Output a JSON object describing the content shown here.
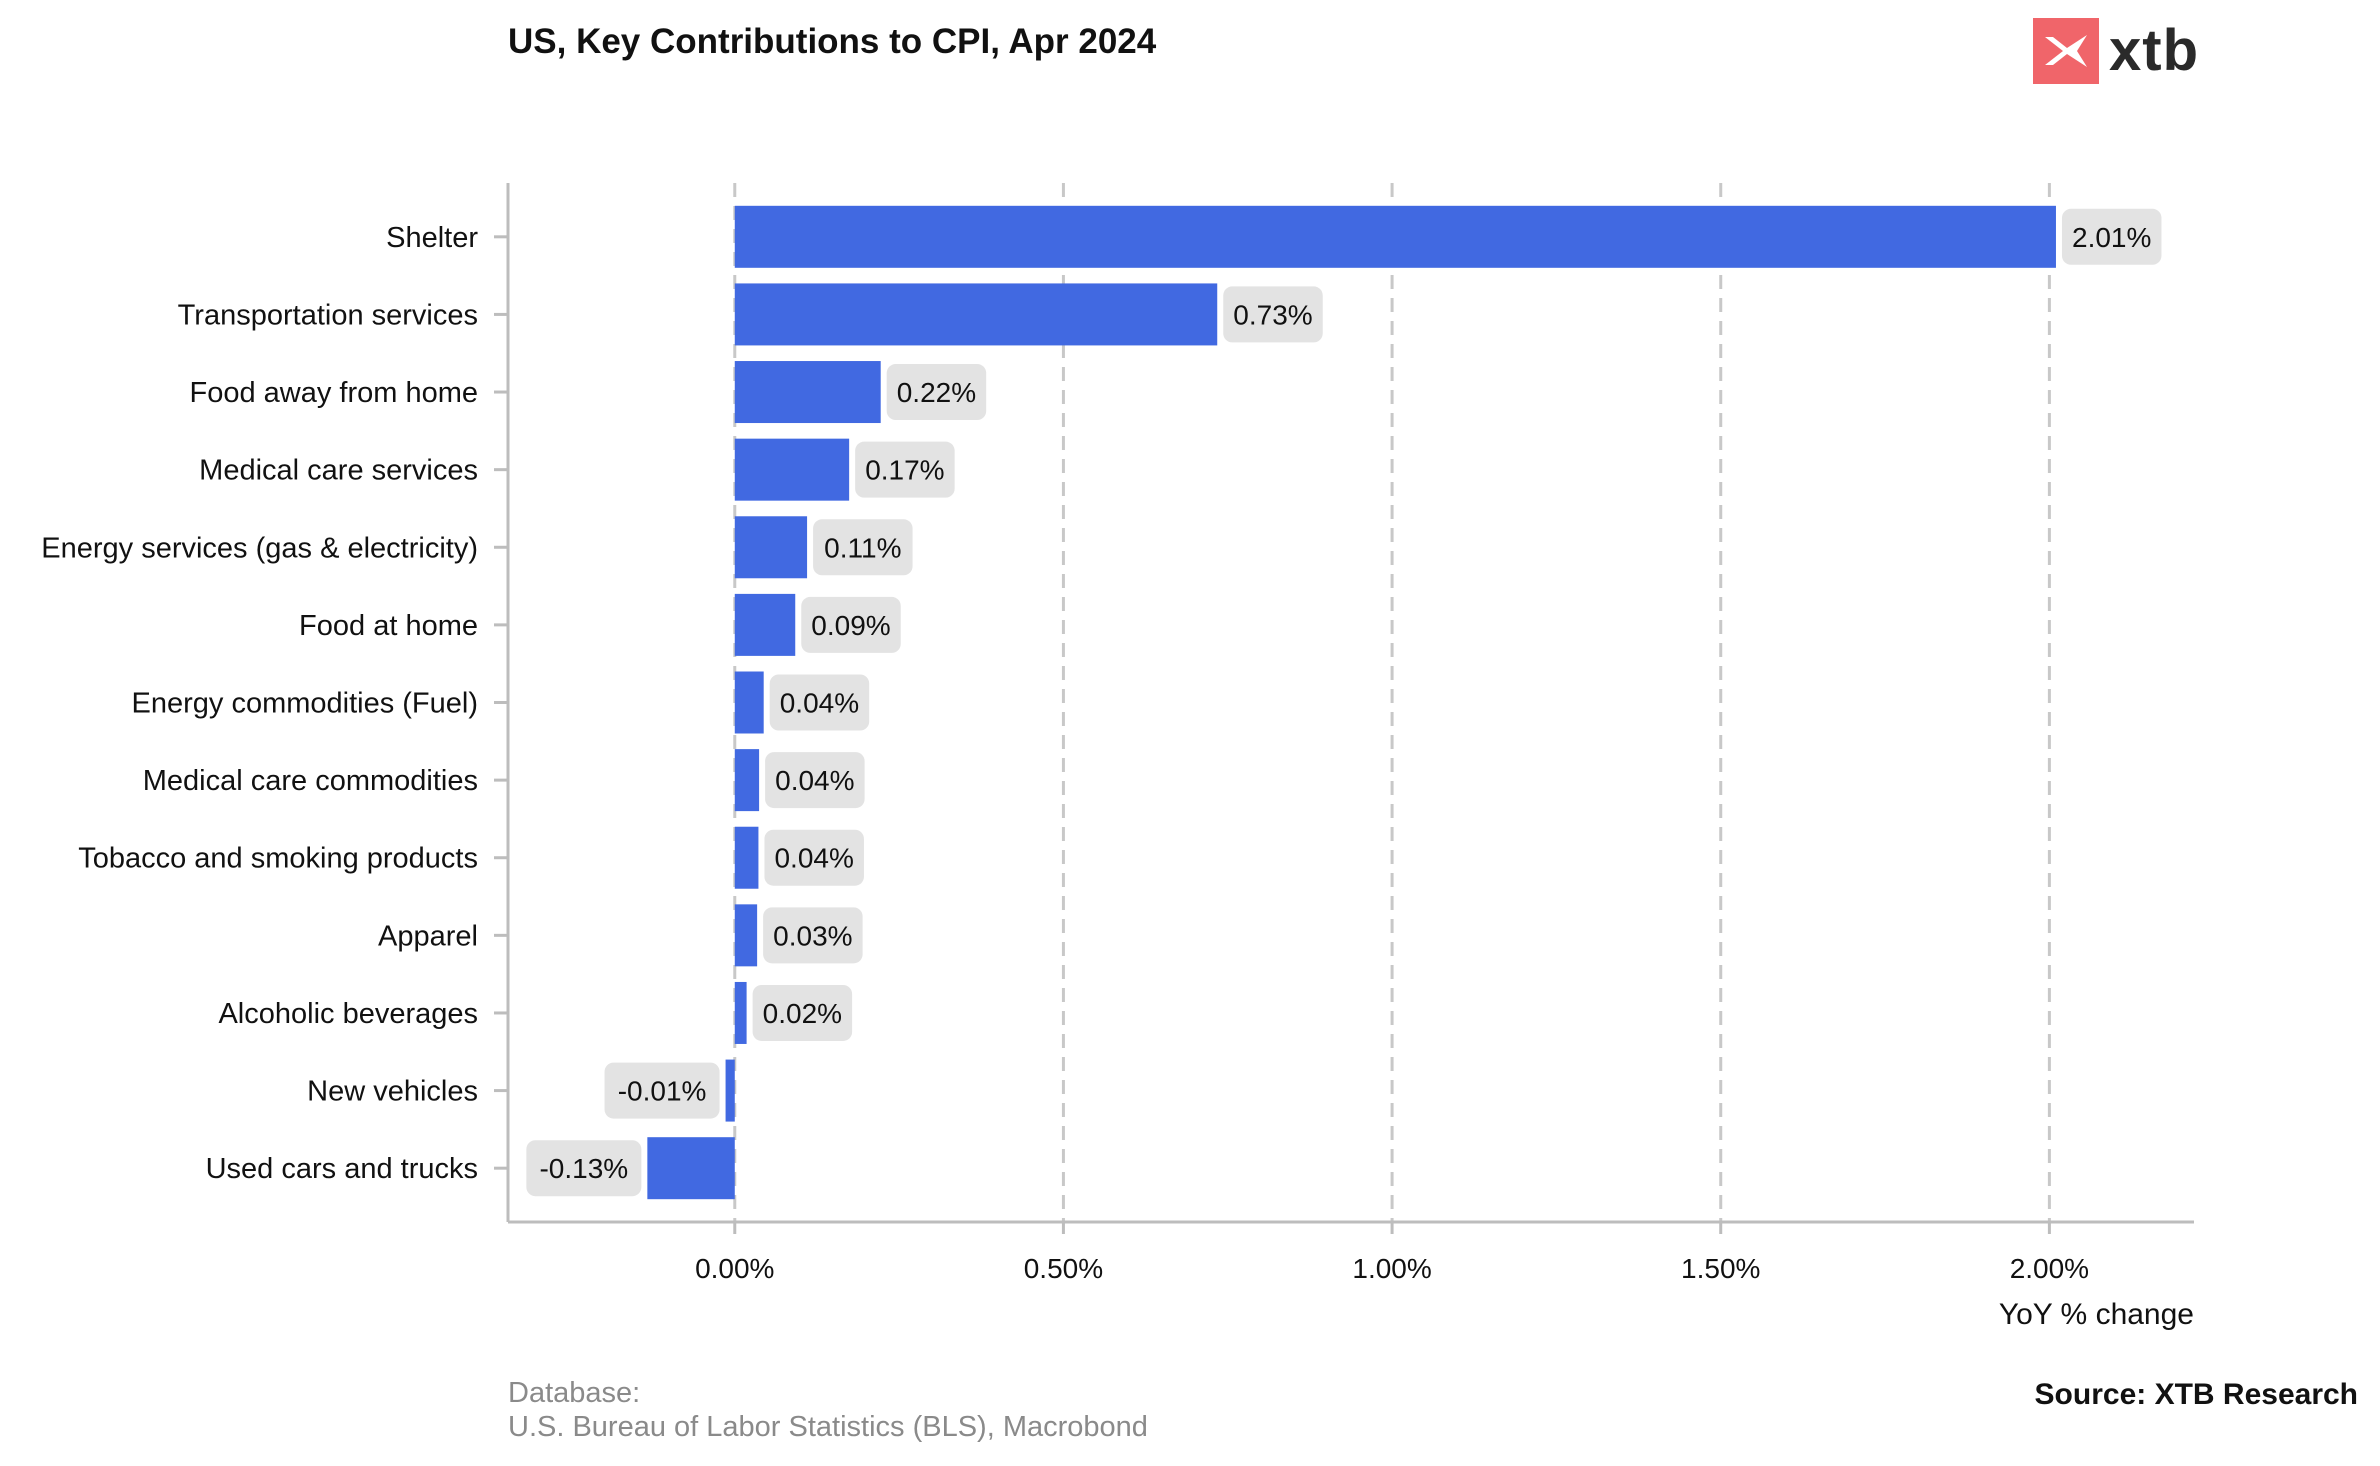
{
  "header": {
    "title": "US, Key Contributions to CPI, Apr 2024",
    "logo_text": "xtb"
  },
  "footer": {
    "database_label": "Database:",
    "database_value": "U.S. Bureau of Labor Statistics (BLS), Macrobond",
    "source": "Source: XTB Research"
  },
  "colors": {
    "bar": "#4169e1",
    "label_bg": "#e3e3e3",
    "grid": "#c8c8c8",
    "axis": "#bdbdbd",
    "logo": "#f0656a"
  },
  "chart_data": {
    "type": "bar",
    "orientation": "horizontal",
    "title": "US, Key Contributions to CPI, Apr 2024",
    "xlabel": "YoY % change",
    "ylabel": "",
    "xlim": [
      -0.345,
      2.22
    ],
    "xticks": [
      0,
      0.5,
      1.0,
      1.5,
      2.0
    ],
    "xtick_labels": [
      "0.00%",
      "0.50%",
      "1.00%",
      "1.50%",
      "2.00%"
    ],
    "grid": "vertical-dashed",
    "categories": [
      "Shelter",
      "Transportation services",
      "Food away from home",
      "Medical care services",
      "Energy services (gas & electricity)",
      "Food at home",
      "Energy commodities (Fuel)",
      "Medical care commodities",
      "Tobacco and smoking products",
      "Apparel",
      "Alcoholic beverages",
      "New vehicles",
      "Used cars and trucks"
    ],
    "values": [
      2.01,
      0.734,
      0.222,
      0.174,
      0.11,
      0.092,
      0.044,
      0.037,
      0.036,
      0.034,
      0.018,
      -0.014,
      -0.133
    ],
    "data_labels": [
      "2.01%",
      "0.73%",
      "0.22%",
      "0.17%",
      "0.11%",
      "0.09%",
      "0.04%",
      "0.04%",
      "0.04%",
      "0.03%",
      "0.02%",
      "-0.01%",
      "-0.13%"
    ]
  }
}
